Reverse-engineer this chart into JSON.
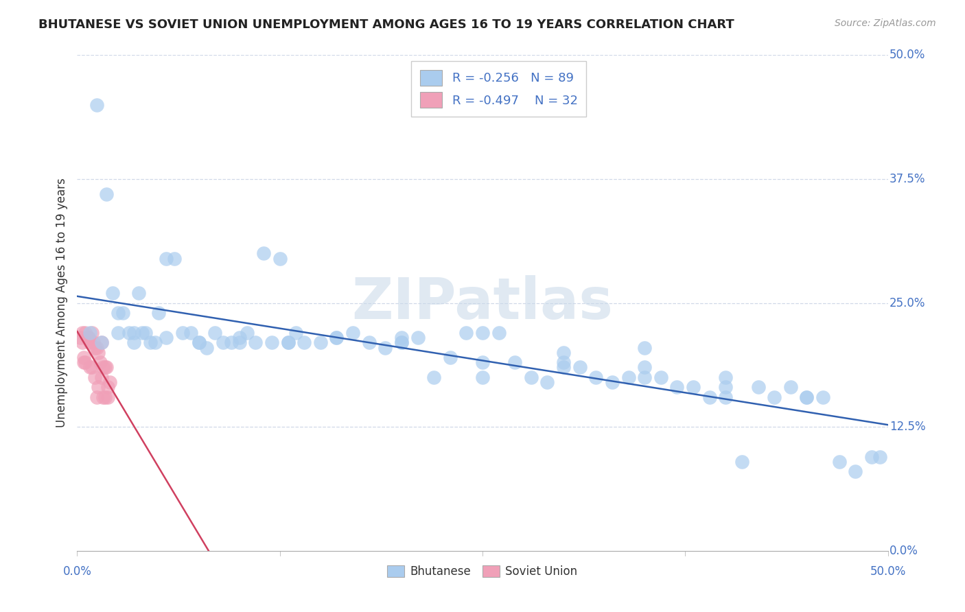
{
  "title": "BHUTANESE VS SOVIET UNION UNEMPLOYMENT AMONG AGES 16 TO 19 YEARS CORRELATION CHART",
  "source": "Source: ZipAtlas.com",
  "ylabel": "Unemployment Among Ages 16 to 19 years",
  "xlim": [
    0.0,
    0.5
  ],
  "ylim": [
    0.0,
    0.5
  ],
  "xtick_labels_bottom": [
    "0.0%",
    "50.0%"
  ],
  "xticks_bottom": [
    0.0,
    0.5
  ],
  "ytick_labels_right": [
    "0.0%",
    "12.5%",
    "25.0%",
    "37.5%",
    "50.0%"
  ],
  "yticks": [
    0.0,
    0.125,
    0.25,
    0.375,
    0.5
  ],
  "grid_yticks": [
    0.125,
    0.25,
    0.375,
    0.5
  ],
  "bhutanese_color": "#aaccee",
  "soviet_color": "#f0a0b8",
  "trend_blue": "#3060b0",
  "trend_pink": "#d04060",
  "R_bhutanese": -0.256,
  "N_bhutanese": 89,
  "R_soviet": -0.497,
  "N_soviet": 32,
  "watermark": "ZIPatlas",
  "watermark_color": "#c8d8e8",
  "legend_labels": [
    "Bhutanese",
    "Soviet Union"
  ],
  "bhutanese_x": [
    0.008,
    0.012,
    0.018,
    0.022,
    0.025,
    0.028,
    0.032,
    0.035,
    0.038,
    0.04,
    0.042,
    0.045,
    0.048,
    0.05,
    0.055,
    0.06,
    0.065,
    0.07,
    0.075,
    0.08,
    0.085,
    0.09,
    0.095,
    0.1,
    0.105,
    0.11,
    0.115,
    0.12,
    0.125,
    0.13,
    0.135,
    0.14,
    0.15,
    0.16,
    0.17,
    0.18,
    0.19,
    0.2,
    0.21,
    0.22,
    0.23,
    0.24,
    0.25,
    0.26,
    0.27,
    0.28,
    0.29,
    0.3,
    0.31,
    0.32,
    0.33,
    0.34,
    0.35,
    0.36,
    0.37,
    0.38,
    0.39,
    0.4,
    0.41,
    0.42,
    0.43,
    0.44,
    0.45,
    0.46,
    0.47,
    0.48,
    0.49,
    0.495,
    0.015,
    0.025,
    0.035,
    0.055,
    0.075,
    0.1,
    0.13,
    0.16,
    0.2,
    0.25,
    0.3,
    0.35,
    0.4,
    0.45,
    0.25,
    0.35,
    0.2,
    0.3,
    0.4
  ],
  "bhutanese_y": [
    0.22,
    0.45,
    0.36,
    0.26,
    0.24,
    0.24,
    0.22,
    0.21,
    0.26,
    0.22,
    0.22,
    0.21,
    0.21,
    0.24,
    0.295,
    0.295,
    0.22,
    0.22,
    0.21,
    0.205,
    0.22,
    0.21,
    0.21,
    0.21,
    0.22,
    0.21,
    0.3,
    0.21,
    0.295,
    0.21,
    0.22,
    0.21,
    0.21,
    0.215,
    0.22,
    0.21,
    0.205,
    0.21,
    0.215,
    0.175,
    0.195,
    0.22,
    0.175,
    0.22,
    0.19,
    0.175,
    0.17,
    0.2,
    0.185,
    0.175,
    0.17,
    0.175,
    0.185,
    0.175,
    0.165,
    0.165,
    0.155,
    0.155,
    0.09,
    0.165,
    0.155,
    0.165,
    0.155,
    0.155,
    0.09,
    0.08,
    0.095,
    0.095,
    0.21,
    0.22,
    0.22,
    0.215,
    0.21,
    0.215,
    0.21,
    0.215,
    0.215,
    0.19,
    0.185,
    0.175,
    0.165,
    0.155,
    0.22,
    0.205,
    0.21,
    0.19,
    0.175
  ],
  "soviet_x": [
    0.002,
    0.003,
    0.004,
    0.005,
    0.006,
    0.007,
    0.008,
    0.009,
    0.01,
    0.011,
    0.012,
    0.013,
    0.014,
    0.015,
    0.016,
    0.017,
    0.018,
    0.019,
    0.02,
    0.003,
    0.005,
    0.007,
    0.009,
    0.011,
    0.013,
    0.015,
    0.017,
    0.019,
    0.004,
    0.008,
    0.012,
    0.016
  ],
  "soviet_y": [
    0.215,
    0.22,
    0.195,
    0.19,
    0.215,
    0.215,
    0.21,
    0.22,
    0.21,
    0.205,
    0.205,
    0.2,
    0.19,
    0.21,
    0.185,
    0.185,
    0.185,
    0.165,
    0.17,
    0.21,
    0.22,
    0.215,
    0.185,
    0.175,
    0.165,
    0.175,
    0.155,
    0.155,
    0.19,
    0.185,
    0.155,
    0.155
  ]
}
